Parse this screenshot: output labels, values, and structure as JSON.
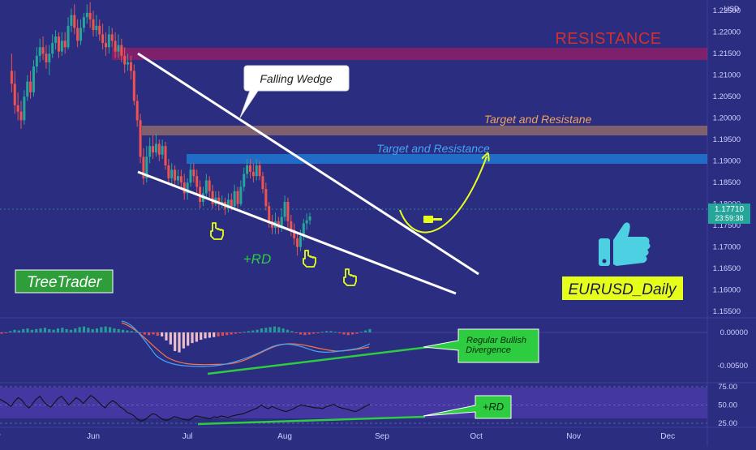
{
  "chart_data": [
    {
      "type": "candlestick",
      "symbol": "EURUSD",
      "timeframe": "Daily",
      "currency": "USD",
      "y_ticks": [
        "1.22500",
        "1.22000",
        "1.21500",
        "1.21000",
        "1.20500",
        "1.20000",
        "1.19500",
        "1.19000",
        "1.18500",
        "1.18000",
        "1.17500",
        "1.17000",
        "1.16500",
        "1.16000",
        "1.15500"
      ],
      "ylim": [
        1.1535,
        1.2275
      ],
      "last_price": "1.17710",
      "countdown": "23:59:38",
      "x_ticks": [
        {
          "label": "May",
          "d": -32
        },
        {
          "label": "Jun",
          "d": 0
        },
        {
          "label": "Jul",
          "d": 30
        },
        {
          "label": "Aug",
          "d": 61
        },
        {
          "label": "Sep",
          "d": 92
        },
        {
          "label": "Oct",
          "d": 122
        },
        {
          "label": "Nov",
          "d": 153
        },
        {
          "label": "Dec",
          "d": 183
        }
      ],
      "candles": [
        [
          -26,
          1.211,
          1.208,
          1.215,
          1.206
        ],
        [
          -25,
          1.208,
          1.203,
          1.211,
          1.201
        ],
        [
          -24,
          1.203,
          1.2015,
          1.206,
          1.1995
        ],
        [
          -23,
          1.2015,
          1.1995,
          1.204,
          1.1975
        ],
        [
          -22,
          1.1995,
          1.205,
          1.2065,
          1.1985
        ],
        [
          -21,
          1.205,
          1.2085,
          1.21,
          1.204
        ],
        [
          -20,
          1.2085,
          1.206,
          1.211,
          1.2045
        ],
        [
          -19,
          1.206,
          1.212,
          1.2135,
          1.205
        ],
        [
          -18,
          1.212,
          1.2145,
          1.2165,
          1.2105
        ],
        [
          -17,
          1.2145,
          1.2165,
          1.2185,
          1.213
        ],
        [
          -16,
          1.2165,
          1.215,
          1.219,
          1.2135
        ],
        [
          -15,
          1.215,
          1.213,
          1.217,
          1.2115
        ],
        [
          -14,
          1.213,
          1.215,
          1.217,
          1.21
        ],
        [
          -13,
          1.215,
          1.2175,
          1.2195,
          1.214
        ],
        [
          -12,
          1.2175,
          1.219,
          1.2205,
          1.216
        ],
        [
          -11,
          1.219,
          1.2155,
          1.22,
          1.214
        ],
        [
          -10,
          1.2155,
          1.218,
          1.22,
          1.2145
        ],
        [
          -9,
          1.218,
          1.2165,
          1.22,
          1.215
        ],
        [
          -8,
          1.2165,
          1.2215,
          1.2235,
          1.216
        ],
        [
          -7,
          1.2215,
          1.224,
          1.2255,
          1.22
        ],
        [
          -6,
          1.224,
          1.221,
          1.2265,
          1.2195
        ],
        [
          -5,
          1.221,
          1.218,
          1.223,
          1.2165
        ],
        [
          -4,
          1.218,
          1.221,
          1.223,
          1.217
        ],
        [
          -3,
          1.221,
          1.2235,
          1.2245,
          1.22
        ],
        [
          -2,
          1.2235,
          1.2245,
          1.2265,
          1.222
        ],
        [
          -1,
          1.2245,
          1.223,
          1.227,
          1.221
        ],
        [
          0,
          1.223,
          1.2205,
          1.225,
          1.219
        ],
        [
          1,
          1.2205,
          1.2215,
          1.224,
          1.219
        ],
        [
          2,
          1.2215,
          1.2195,
          1.223,
          1.218
        ],
        [
          3,
          1.2195,
          1.2175,
          1.222,
          1.216
        ],
        [
          4,
          1.2175,
          1.2165,
          1.22,
          1.2145
        ],
        [
          5,
          1.2165,
          1.2195,
          1.2215,
          1.215
        ],
        [
          6,
          1.2195,
          1.218,
          1.221,
          1.2165
        ],
        [
          7,
          1.218,
          1.2155,
          1.22,
          1.214
        ],
        [
          8,
          1.2155,
          1.217,
          1.2195,
          1.214
        ],
        [
          9,
          1.217,
          1.2145,
          1.2185,
          1.213
        ],
        [
          10,
          1.2145,
          1.2125,
          1.2165,
          1.2105
        ],
        [
          11,
          1.2125,
          1.213,
          1.215,
          1.211
        ],
        [
          12,
          1.213,
          1.211,
          1.2145,
          1.209
        ],
        [
          13,
          1.211,
          1.204,
          1.2125,
          1.203
        ],
        [
          14,
          1.204,
          1.1995,
          1.2055,
          1.198
        ],
        [
          15,
          1.1995,
          1.191,
          1.201,
          1.1895
        ],
        [
          16,
          1.191,
          1.186,
          1.193,
          1.1845
        ],
        [
          17,
          1.186,
          1.191,
          1.1935,
          1.185
        ],
        [
          18,
          1.191,
          1.1935,
          1.1955,
          1.1895
        ],
        [
          19,
          1.1935,
          1.192,
          1.196,
          1.1905
        ],
        [
          20,
          1.192,
          1.194,
          1.1965,
          1.191
        ],
        [
          21,
          1.194,
          1.1915,
          1.195,
          1.19
        ],
        [
          22,
          1.1915,
          1.1935,
          1.195,
          1.1905
        ],
        [
          23,
          1.1935,
          1.189,
          1.1945,
          1.188
        ],
        [
          24,
          1.189,
          1.186,
          1.1905,
          1.1845
        ],
        [
          25,
          1.186,
          1.188,
          1.1895,
          1.1845
        ],
        [
          26,
          1.188,
          1.1855,
          1.189,
          1.184
        ],
        [
          27,
          1.1855,
          1.1865,
          1.188,
          1.1845
        ],
        [
          28,
          1.1865,
          1.185,
          1.188,
          1.1835
        ],
        [
          29,
          1.185,
          1.1825,
          1.187,
          1.181
        ],
        [
          30,
          1.1825,
          1.185,
          1.186,
          1.181
        ],
        [
          31,
          1.185,
          1.188,
          1.1895,
          1.184
        ],
        [
          32,
          1.188,
          1.1865,
          1.1895,
          1.185
        ],
        [
          33,
          1.1865,
          1.184,
          1.188,
          1.1825
        ],
        [
          34,
          1.184,
          1.1805,
          1.1855,
          1.179
        ],
        [
          35,
          1.1805,
          1.1825,
          1.184,
          1.1795
        ],
        [
          36,
          1.1825,
          1.1855,
          1.187,
          1.1815
        ],
        [
          37,
          1.1855,
          1.183,
          1.1865,
          1.1815
        ],
        [
          38,
          1.183,
          1.18,
          1.1845,
          1.179
        ],
        [
          39,
          1.18,
          1.1815,
          1.183,
          1.1795
        ],
        [
          40,
          1.1815,
          1.18,
          1.183,
          1.1785
        ],
        [
          41,
          1.18,
          1.1805,
          1.182,
          1.179
        ],
        [
          42,
          1.1805,
          1.179,
          1.1815,
          1.1775
        ],
        [
          43,
          1.179,
          1.181,
          1.1825,
          1.178
        ],
        [
          44,
          1.181,
          1.1795,
          1.1825,
          1.1785
        ],
        [
          45,
          1.1795,
          1.183,
          1.1845,
          1.1785
        ],
        [
          46,
          1.183,
          1.18,
          1.184,
          1.179
        ],
        [
          47,
          1.18,
          1.184,
          1.1855,
          1.1795
        ],
        [
          48,
          1.184,
          1.187,
          1.1885,
          1.183
        ],
        [
          49,
          1.187,
          1.189,
          1.1905,
          1.186
        ],
        [
          50,
          1.189,
          1.1875,
          1.1905,
          1.186
        ],
        [
          51,
          1.1875,
          1.1865,
          1.1895,
          1.185
        ],
        [
          52,
          1.1865,
          1.189,
          1.1905,
          1.1855
        ],
        [
          53,
          1.189,
          1.1865,
          1.19,
          1.1855
        ],
        [
          54,
          1.1865,
          1.1835,
          1.1875,
          1.1825
        ],
        [
          55,
          1.1835,
          1.1795,
          1.185,
          1.1785
        ],
        [
          56,
          1.1795,
          1.176,
          1.1805,
          1.1745
        ],
        [
          57,
          1.176,
          1.1745,
          1.1775,
          1.173
        ],
        [
          58,
          1.1745,
          1.176,
          1.178,
          1.173
        ],
        [
          59,
          1.176,
          1.1745,
          1.177,
          1.173
        ],
        [
          60,
          1.1745,
          1.177,
          1.179,
          1.1735
        ],
        [
          61,
          1.177,
          1.1805,
          1.182,
          1.176
        ],
        [
          62,
          1.1805,
          1.176,
          1.1815,
          1.1745
        ],
        [
          63,
          1.176,
          1.174,
          1.1775,
          1.1725
        ],
        [
          64,
          1.174,
          1.172,
          1.1755,
          1.1705
        ],
        [
          65,
          1.172,
          1.17,
          1.173,
          1.168
        ],
        [
          66,
          1.17,
          1.1725,
          1.174,
          1.169
        ],
        [
          67,
          1.1725,
          1.1755,
          1.1765,
          1.1715
        ],
        [
          68,
          1.1755,
          1.1762,
          1.1778,
          1.174
        ],
        [
          69,
          1.1762,
          1.1771,
          1.178,
          1.1752
        ]
      ],
      "macd_ticks": [
        "0.00000",
        "-0.00500"
      ],
      "macd_hist": [
        -0.0002,
        -0.0001,
        0.0002,
        0.0004,
        0.0003,
        0.0005,
        0.0006,
        0.0004,
        0.0005,
        0.0006,
        0.0007,
        0.0005,
        0.0004,
        0.0006,
        0.0007,
        0.0005,
        0.0004,
        0.0006,
        0.0008,
        0.0009,
        0.0007,
        0.0005,
        0.0006,
        0.0008,
        0.0009,
        0.0008,
        0.0006,
        0.0005,
        0.0004,
        0.0003,
        0.0002,
        0.0001,
        -0.0001,
        -0.0003,
        -0.0004,
        -0.0003,
        -0.0005,
        -0.0006,
        -0.0012,
        -0.0018,
        -0.0028,
        -0.003,
        -0.0024,
        -0.002,
        -0.0016,
        -0.0014,
        -0.0011,
        -0.0009,
        -0.0008,
        -0.0007,
        -0.0006,
        -0.0005,
        -0.0004,
        -0.0003,
        -0.0002,
        -0.0001,
        0.0001,
        0.0002,
        0.0003,
        0.0004,
        0.0006,
        0.0007,
        0.0008,
        0.0009,
        0.0008,
        0.0006,
        0.0004,
        0.0002,
        -0.0001,
        -0.0003,
        -0.0004,
        -0.0003,
        -0.0002,
        -0.0001,
        0.0001,
        0.0002,
        0.0002,
        0.0001,
        -0.0001,
        -0.0003,
        -0.0004,
        -0.0003,
        -0.0002,
        0.0001,
        0.0003,
        0.0005
      ],
      "rsi_ticks": [
        "75.00",
        "50.00",
        "25.00"
      ],
      "rsi_values": [
        58,
        55,
        52,
        48,
        55,
        60,
        57,
        50,
        46,
        52,
        58,
        62,
        55,
        50,
        47,
        53,
        59,
        62,
        56,
        50,
        55,
        60,
        57,
        52,
        58,
        63,
        60,
        55,
        50,
        46,
        52,
        56,
        53,
        48,
        45,
        40,
        38,
        35,
        30,
        28,
        30,
        34,
        38,
        37,
        33,
        30,
        29,
        31,
        34,
        33,
        31,
        30,
        29,
        32,
        35,
        34,
        33,
        32,
        31,
        34,
        33,
        35,
        34,
        33,
        35,
        36,
        37,
        38,
        40,
        42,
        44,
        46,
        50,
        47,
        45,
        48,
        46,
        44,
        42,
        41,
        43,
        45,
        48,
        50,
        49,
        48,
        47,
        46,
        46,
        45,
        48,
        49,
        51,
        48,
        46,
        45,
        44,
        42,
        41,
        43,
        46,
        49,
        51
      ]
    }
  ],
  "annotations": {
    "resistance": "RESISTANCE",
    "target_upper": "Target and Resistane",
    "target_lower": "Target and Resistance",
    "pattern": "Falling Wedge",
    "rd_main": "+RD",
    "rd_small": "+RD",
    "divergence": "Regular Bullish Divergence",
    "author": "TreeTrader",
    "title": "EURUSD_Daily"
  },
  "colors": {
    "background": "#2b2d80",
    "bull": "#26a69a",
    "bear": "#ef5350",
    "resistance_band": "#c2185b",
    "target_band_upper": "#c58a5e",
    "target_band_lower": "#1e88e5",
    "accent_green": "#2ecc40",
    "accent_yellow": "#e6ff1a",
    "price_label": "#26a69a",
    "thumb": "#4dd0e1"
  },
  "icons": [
    "hand-pointer-icon",
    "hand-pointer-icon",
    "hand-pointer-icon",
    "gavel-icon",
    "thumbs-up-icon"
  ]
}
